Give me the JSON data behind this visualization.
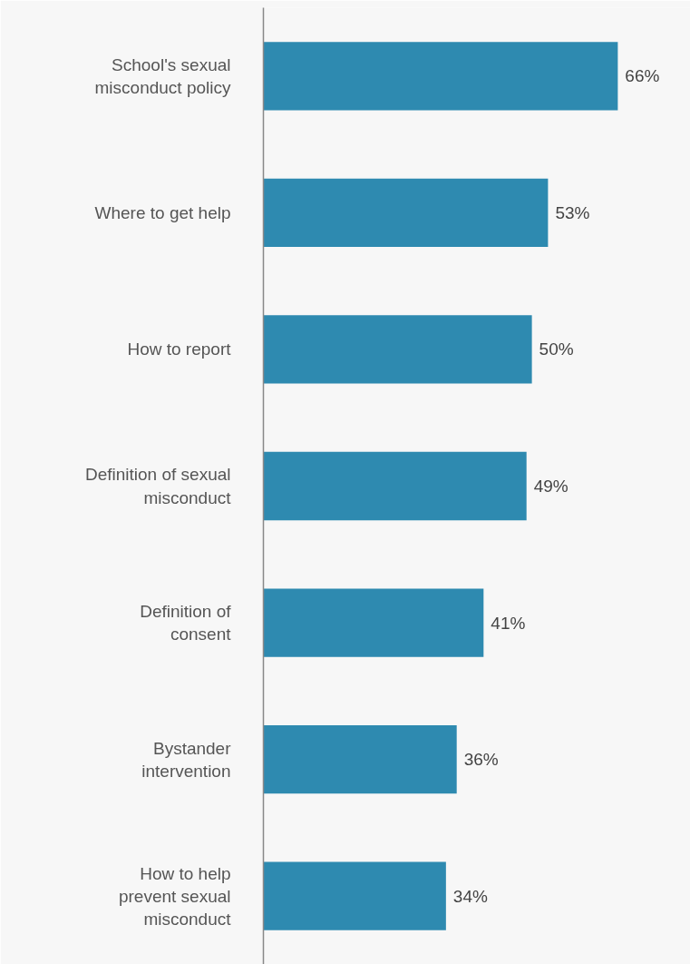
{
  "chart_data": {
    "type": "bar",
    "orientation": "horizontal",
    "categories": [
      "School's sexual\nmisconduct policy",
      "Where to get help",
      "How to report",
      "Definition of sexual\nmisconduct",
      "Definition of\nconsent",
      "Bystander\nintervention",
      "How to help\nprevent sexual\nmisconduct"
    ],
    "values": [
      66,
      53,
      50,
      49,
      41,
      36,
      34
    ],
    "value_labels": [
      "66%",
      "53%",
      "50%",
      "49%",
      "41%",
      "36%",
      "34%"
    ],
    "color": "#2e8ab0",
    "grid": false,
    "tick_labels": "y"
  }
}
